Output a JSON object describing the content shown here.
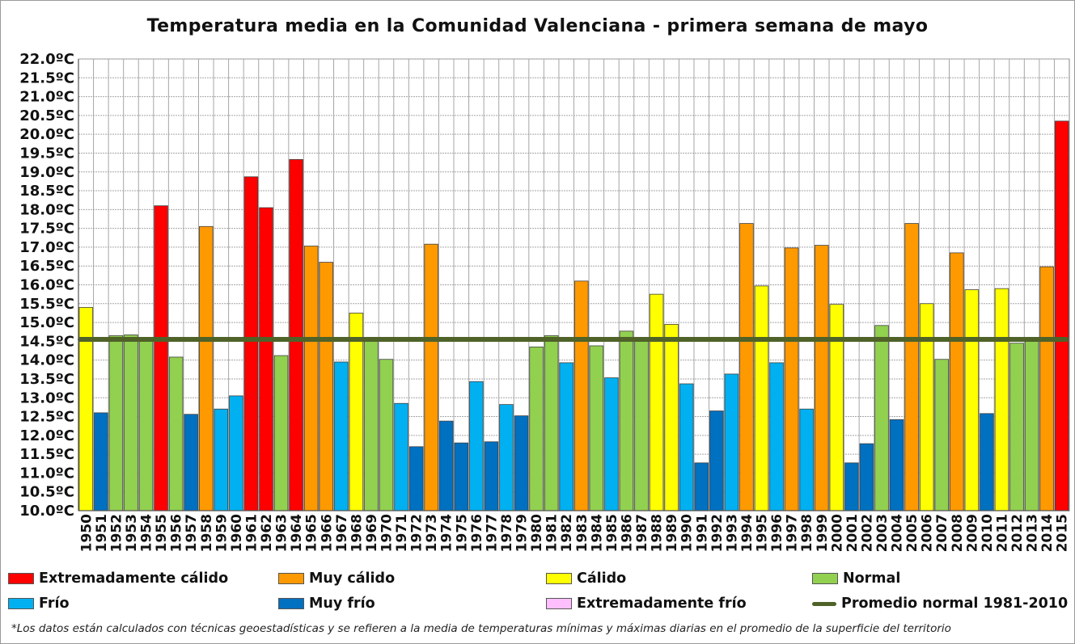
{
  "chart_data": {
    "type": "bar",
    "title": "Temperatura media en la Comunidad Valenciana - primera semana de mayo",
    "ylim": [
      10.0,
      22.0
    ],
    "ytick_step": 0.5,
    "yticks": [
      "10.0ºC",
      "10.5ºC",
      "11.0ºC",
      "11.5ºC",
      "12.0ºC",
      "12.5ºC",
      "13.0ºC",
      "13.5ºC",
      "14.0ºC",
      "14.5ºC",
      "15.0ºC",
      "15.5ºC",
      "16.0ºC",
      "16.5ºC",
      "17.0ºC",
      "17.5ºC",
      "18.0ºC",
      "18.5ºC",
      "19.0ºC",
      "19.5ºC",
      "20.0ºC",
      "20.5ºC",
      "21.0ºC",
      "21.5ºC",
      "22.0ºC"
    ],
    "grid": true,
    "categories": [
      "1950",
      "1951",
      "1952",
      "1953",
      "1954",
      "1955",
      "1956",
      "1957",
      "1958",
      "1959",
      "1960",
      "1961",
      "1962",
      "1963",
      "1964",
      "1965",
      "1966",
      "1967",
      "1968",
      "1969",
      "1970",
      "1971",
      "1972",
      "1973",
      "1974",
      "1975",
      "1976",
      "1977",
      "1978",
      "1979",
      "1980",
      "1981",
      "1982",
      "1983",
      "1984",
      "1985",
      "1986",
      "1987",
      "1988",
      "1989",
      "1990",
      "1991",
      "1992",
      "1993",
      "1994",
      "1995",
      "1996",
      "1997",
      "1998",
      "1999",
      "2000",
      "2001",
      "2002",
      "2003",
      "2004",
      "2005",
      "2006",
      "2007",
      "2008",
      "2009",
      "2010",
      "2011",
      "2012",
      "2013",
      "2014",
      "2015"
    ],
    "values": [
      15.4,
      12.6,
      14.65,
      14.67,
      14.5,
      18.1,
      14.08,
      12.56,
      17.55,
      12.7,
      13.05,
      18.87,
      18.05,
      14.12,
      19.33,
      17.03,
      16.6,
      13.95,
      15.25,
      14.55,
      14.02,
      12.85,
      11.7,
      17.08,
      12.38,
      11.8,
      13.43,
      11.83,
      12.82,
      12.52,
      14.35,
      14.65,
      13.93,
      16.1,
      14.38,
      13.53,
      14.77,
      14.55,
      15.75,
      14.95,
      13.37,
      11.27,
      12.65,
      13.63,
      17.63,
      15.97,
      13.93,
      16.98,
      12.7,
      17.05,
      15.48,
      11.27,
      11.78,
      14.92,
      12.42,
      17.63,
      15.5,
      14.02,
      16.85,
      15.87,
      12.58,
      15.9,
      14.45,
      14.55,
      16.48,
      20.35
    ],
    "classes": [
      "calido",
      "muy_frio",
      "normal",
      "normal",
      "normal",
      "extremadamente_calido",
      "normal",
      "muy_frio",
      "muy_calido",
      "frio",
      "frio",
      "extremadamente_calido",
      "extremadamente_calido",
      "normal",
      "extremadamente_calido",
      "muy_calido",
      "muy_calido",
      "frio",
      "calido",
      "normal",
      "normal",
      "frio",
      "muy_frio",
      "muy_calido",
      "muy_frio",
      "muy_frio",
      "frio",
      "muy_frio",
      "frio",
      "muy_frio",
      "normal",
      "normal",
      "frio",
      "muy_calido",
      "normal",
      "frio",
      "normal",
      "normal",
      "calido",
      "calido",
      "frio",
      "muy_frio",
      "muy_frio",
      "frio",
      "muy_calido",
      "calido",
      "frio",
      "muy_calido",
      "frio",
      "muy_calido",
      "calido",
      "muy_frio",
      "muy_frio",
      "normal",
      "muy_frio",
      "muy_calido",
      "calido",
      "normal",
      "muy_calido",
      "calido",
      "muy_frio",
      "calido",
      "normal",
      "normal",
      "muy_calido",
      "extremadamente_calido"
    ],
    "class_colors": {
      "extremadamente_calido": "#ff0000",
      "muy_calido": "#ff9900",
      "calido": "#ffff00",
      "normal": "#92d050",
      "frio": "#00b0f0",
      "muy_frio": "#0070c0",
      "extremadamente_frio": "#ffbfff"
    },
    "reference_line": {
      "value": 14.55,
      "color": "#4f6228"
    },
    "legend": [
      {
        "key": "extremadamente_calido",
        "label": "Extremadamente cálido",
        "color": "#ff0000"
      },
      {
        "key": "muy_calido",
        "label": "Muy cálido",
        "color": "#ff9900"
      },
      {
        "key": "calido",
        "label": "Cálido",
        "color": "#ffff00"
      },
      {
        "key": "normal",
        "label": "Normal",
        "color": "#92d050"
      },
      {
        "key": "frio",
        "label": "Frío",
        "color": "#00b0f0"
      },
      {
        "key": "muy_frio",
        "label": "Muy frío",
        "color": "#0070c0"
      },
      {
        "key": "extremadamente_frio",
        "label": "Extremadamente frío",
        "color": "#ffbfff"
      },
      {
        "key": "promedio",
        "label": "Promedio normal 1981-2010",
        "color": "#4f6228",
        "line": true
      }
    ],
    "footnote": "*Los datos están calculados con técnicas geoestadísticas y se refieren a la media de temperaturas mínimas y máximas diarias en el promedio de la superficie del territorio"
  }
}
